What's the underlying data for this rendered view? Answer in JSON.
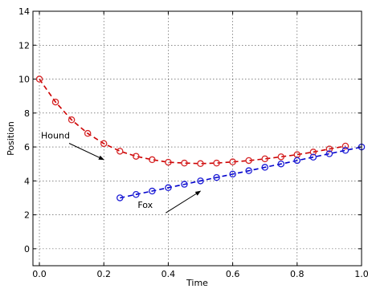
{
  "chart_data": {
    "type": "line",
    "title": "",
    "xlabel": "Time",
    "ylabel": "Position",
    "xlim": [
      -0.02,
      1.0
    ],
    "ylim": [
      -1,
      14
    ],
    "xticks": [
      0.0,
      0.2,
      0.4,
      0.6,
      0.8,
      1.0
    ],
    "xtick_labels": [
      "0.0",
      "0.2",
      "0.4",
      "0.6",
      "0.8",
      "1.0"
    ],
    "yticks": [
      0,
      2,
      4,
      6,
      8,
      10,
      12,
      14
    ],
    "ytick_labels": [
      "0",
      "2",
      "4",
      "6",
      "8",
      "10",
      "12",
      "14"
    ],
    "grid": true,
    "series": [
      {
        "color": "#d62728",
        "line_color": "#cc0000",
        "line_style": "dashed",
        "marker": "open-circle",
        "x": [
          0.0,
          0.05,
          0.1,
          0.15,
          0.2,
          0.25,
          0.3,
          0.35,
          0.4,
          0.45,
          0.5,
          0.55,
          0.6,
          0.65,
          0.7,
          0.75,
          0.8,
          0.85,
          0.9,
          0.95
        ],
        "y": [
          10.0,
          8.65,
          7.6,
          6.8,
          6.2,
          5.75,
          5.45,
          5.25,
          5.1,
          5.05,
          5.02,
          5.05,
          5.12,
          5.2,
          5.3,
          5.42,
          5.55,
          5.7,
          5.88,
          6.05
        ]
      },
      {
        "color": "#1f1fd6",
        "line_color": "#0000cc",
        "line_style": "dashed",
        "marker": "open-circle",
        "x": [
          0.25,
          0.3,
          0.35,
          0.4,
          0.45,
          0.5,
          0.55,
          0.6,
          0.65,
          0.7,
          0.75,
          0.8,
          0.85,
          0.9,
          0.95,
          1.0
        ],
        "y": [
          3.0,
          3.2,
          3.4,
          3.6,
          3.8,
          4.0,
          4.2,
          4.4,
          4.6,
          4.8,
          5.0,
          5.2,
          5.4,
          5.6,
          5.8,
          6.0
        ]
      }
    ],
    "annotations": [
      {
        "text": "Hound",
        "target_x": 0.2,
        "target_y": 5.25,
        "text_x": 0.005,
        "text_y": 6.5
      },
      {
        "text": "Fox",
        "target_x": 0.5,
        "target_y": 3.4,
        "text_x": 0.305,
        "text_y": 2.4
      }
    ]
  }
}
